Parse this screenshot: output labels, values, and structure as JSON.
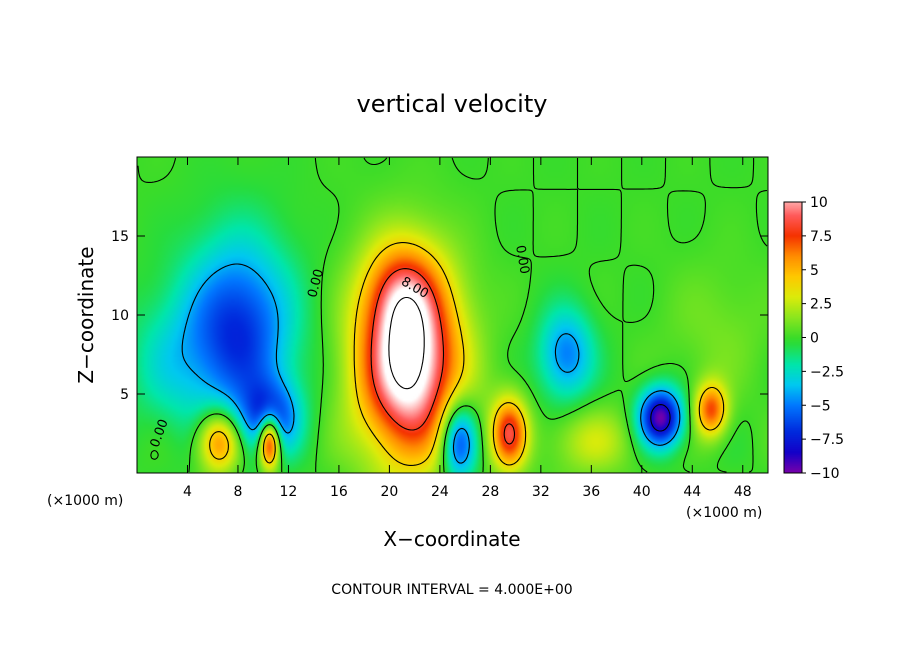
{
  "chart_data": {
    "type": "heatmap",
    "title": "vertical velocity",
    "xlabel": "X−coordinate",
    "ylabel": "Z−coordinate",
    "x_unit_left": "(×1000 m)",
    "x_unit_right": "(×1000 m)",
    "xlim": [
      0,
      50
    ],
    "ylim": [
      0,
      20
    ],
    "xticks": [
      4,
      8,
      12,
      16,
      20,
      24,
      28,
      32,
      36,
      40,
      44,
      48
    ],
    "yticks": [
      5,
      10,
      15
    ],
    "colorbar": {
      "ticks": [
        10,
        7.5,
        5,
        2.5,
        0,
        -2.5,
        -5,
        -7.5,
        -10
      ],
      "tick_labels": [
        "10",
        "7.5",
        "5",
        "2.5",
        "0",
        "−2.5",
        "−5",
        "−7.5",
        "−10"
      ],
      "range": [
        -10,
        10
      ]
    },
    "contour_interval": 4.0,
    "contour_labels": [
      {
        "text": "0.00",
        "x": 1.8,
        "z": 2.5,
        "rot": -70
      },
      {
        "text": "0.00",
        "x": 14.2,
        "z": 12.0,
        "rot": -75
      },
      {
        "text": "8.00",
        "x": 22.0,
        "z": 11.7,
        "rot": 30
      },
      {
        "text": "0.00",
        "x": 30.5,
        "z": 13.5,
        "rot": 80
      }
    ],
    "features": [
      {
        "kind": "updraft",
        "x": 21.5,
        "z": 7.0,
        "peak": 13
      },
      {
        "kind": "downdraft",
        "x": 7.5,
        "z": 9.0,
        "peak": -7
      },
      {
        "kind": "downdraft",
        "x": 10.5,
        "z": 3.5,
        "peak": -9
      },
      {
        "kind": "updraft",
        "x": 10.5,
        "z": 2.0,
        "peak": 11
      },
      {
        "kind": "updraft",
        "x": 6.5,
        "z": 2.0,
        "peak": 7
      },
      {
        "kind": "downdraft",
        "x": 25.5,
        "z": 2.0,
        "peak": -7
      },
      {
        "kind": "updraft",
        "x": 29.5,
        "z": 2.5,
        "peak": 8
      },
      {
        "kind": "downdraft",
        "x": 41.5,
        "z": 3.5,
        "peak": -10
      },
      {
        "kind": "updraft",
        "x": 45.5,
        "z": 4.0,
        "peak": 7
      },
      {
        "kind": "downdraft",
        "x": 34.0,
        "z": 7.5,
        "peak": -5
      }
    ],
    "footer": "CONTOUR INTERVAL = 4.000E+00"
  }
}
